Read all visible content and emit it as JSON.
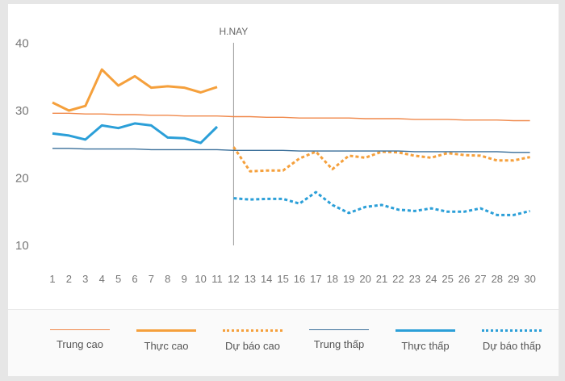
{
  "chart_data": {
    "type": "line",
    "x": [
      1,
      2,
      3,
      4,
      5,
      6,
      7,
      8,
      9,
      10,
      11,
      12,
      13,
      14,
      15,
      16,
      17,
      18,
      19,
      20,
      21,
      22,
      23,
      24,
      25,
      26,
      27,
      28,
      29,
      30
    ],
    "ylim": [
      10,
      40
    ],
    "yticks": [
      10,
      20,
      30,
      40
    ],
    "today_marker": {
      "x": 12,
      "label": "H.NAY"
    },
    "series": [
      {
        "name": "Trung cao",
        "color": "#f0884a",
        "style": "thin",
        "x": [
          1,
          2,
          3,
          4,
          5,
          6,
          7,
          8,
          9,
          10,
          11,
          12,
          13,
          14,
          15,
          16,
          17,
          18,
          19,
          20,
          21,
          22,
          23,
          24,
          25,
          26,
          27,
          28,
          29,
          30
        ],
        "values": [
          29.6,
          29.6,
          29.5,
          29.5,
          29.4,
          29.4,
          29.3,
          29.3,
          29.2,
          29.2,
          29.2,
          29.1,
          29.1,
          29.0,
          29.0,
          28.9,
          28.9,
          28.9,
          28.9,
          28.8,
          28.8,
          28.8,
          28.7,
          28.7,
          28.7,
          28.6,
          28.6,
          28.6,
          28.5,
          28.5
        ]
      },
      {
        "name": "Thực cao",
        "color": "#f5a03c",
        "style": "solid",
        "x": [
          1,
          2,
          3,
          4,
          5,
          6,
          7,
          8,
          9,
          10,
          11
        ],
        "values": [
          31.2,
          30.0,
          30.7,
          36.1,
          33.7,
          35.1,
          33.4,
          33.6,
          33.4,
          32.7,
          33.5
        ]
      },
      {
        "name": "Dự báo cao",
        "color": "#f5a03c",
        "style": "dotted",
        "x": [
          12,
          13,
          14,
          15,
          16,
          17,
          18,
          19,
          20,
          21,
          22,
          23,
          24,
          25,
          26,
          27,
          28,
          29,
          30
        ],
        "values": [
          24.6,
          21.0,
          21.1,
          21.1,
          22.9,
          23.9,
          21.3,
          23.3,
          23.0,
          23.9,
          23.8,
          23.3,
          23.0,
          23.7,
          23.4,
          23.3,
          22.6,
          22.6,
          23.1
        ]
      },
      {
        "name": "Trung thấp",
        "color": "#3a6f9a",
        "style": "thin",
        "x": [
          1,
          2,
          3,
          4,
          5,
          6,
          7,
          8,
          9,
          10,
          11,
          12,
          13,
          14,
          15,
          16,
          17,
          18,
          19,
          20,
          21,
          22,
          23,
          24,
          25,
          26,
          27,
          28,
          29,
          30
        ],
        "values": [
          24.4,
          24.4,
          24.3,
          24.3,
          24.3,
          24.3,
          24.2,
          24.2,
          24.2,
          24.2,
          24.2,
          24.1,
          24.1,
          24.1,
          24.1,
          24.0,
          24.0,
          24.0,
          24.0,
          24.0,
          24.0,
          24.0,
          23.9,
          23.9,
          23.9,
          23.9,
          23.9,
          23.9,
          23.8,
          23.8
        ]
      },
      {
        "name": "Thực thấp",
        "color": "#2b9fd8",
        "style": "solid",
        "x": [
          1,
          2,
          3,
          4,
          5,
          6,
          7,
          8,
          9,
          10,
          11
        ],
        "values": [
          26.6,
          26.3,
          25.7,
          27.8,
          27.4,
          28.1,
          27.8,
          26.0,
          25.9,
          25.2,
          27.6
        ]
      },
      {
        "name": "Dự báo thấp",
        "color": "#2b9fd8",
        "style": "dotted",
        "x": [
          12,
          13,
          14,
          15,
          16,
          17,
          18,
          19,
          20,
          21,
          22,
          23,
          24,
          25,
          26,
          27,
          28,
          29,
          30
        ],
        "values": [
          17.0,
          16.8,
          16.9,
          16.9,
          16.2,
          17.9,
          16.0,
          14.8,
          15.7,
          16.0,
          15.3,
          15.1,
          15.5,
          15.0,
          15.0,
          15.5,
          14.5,
          14.5,
          15.1
        ]
      }
    ]
  }
}
